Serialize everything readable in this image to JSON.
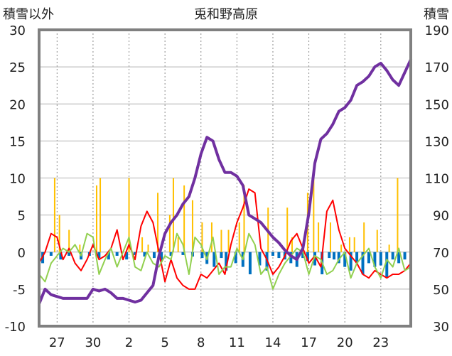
{
  "chart_data": {
    "type": "line",
    "title": "兎和野高原",
    "ylabel_left": "積雪以外",
    "ylabel_right": "積雪",
    "y_left": {
      "min": -10,
      "max": 30,
      "ticks": [
        -10,
        -5,
        0,
        5,
        10,
        15,
        20,
        25,
        30
      ]
    },
    "y_right": {
      "min": 30,
      "max": 190,
      "ticks": [
        30,
        50,
        70,
        90,
        110,
        130,
        150,
        170,
        190
      ]
    },
    "x": {
      "min": 0,
      "max": 31,
      "tick_positions": [
        1.5,
        4.5,
        7.5,
        10.5,
        13.5,
        16.5,
        19.5,
        22.5,
        25.5,
        28.5
      ],
      "tick_labels": [
        "27",
        "30",
        "2",
        "5",
        "8",
        "11",
        "14",
        "17",
        "20",
        "23"
      ]
    },
    "grid": "vertical-dotted",
    "colors": {
      "frame": "#808080",
      "grid": "#8a8a8a",
      "temp": "#ff0000",
      "dewpoint": "#92d050",
      "snow": "#7030a0",
      "precip": "#ffc000",
      "bars": "#0070c0"
    },
    "series": [
      {
        "key": "temp",
        "axis": "left",
        "x": [
          0,
          0.5,
          1,
          1.5,
          2,
          2.5,
          3,
          3.5,
          4,
          4.5,
          5,
          5.5,
          6,
          6.5,
          7,
          7.5,
          8,
          8.5,
          9,
          9.5,
          10,
          10.5,
          11,
          11.5,
          12,
          12.5,
          13,
          13.5,
          14,
          14.5,
          15,
          15.5,
          16,
          16.5,
          17,
          17.5,
          18,
          18.5,
          19,
          19.5,
          20,
          20.5,
          21,
          21.5,
          22,
          22.5,
          23,
          23.5,
          24,
          24.5,
          25,
          25.5,
          26,
          26.5,
          27,
          27.5,
          28,
          28.5,
          29,
          29.5,
          30,
          30.5,
          31
        ],
        "values": [
          -1.5,
          0,
          2.5,
          2,
          -1,
          0.5,
          -1.5,
          -2.5,
          -1,
          1,
          -1,
          -0.5,
          0.5,
          3,
          -1,
          1,
          -1,
          3.5,
          5.5,
          4,
          0,
          -4,
          -1,
          -3.5,
          -4.5,
          -5,
          -5,
          -3,
          -3.5,
          -2.5,
          -1.5,
          -3,
          1,
          4,
          6,
          8.5,
          8,
          0.5,
          -1,
          -3,
          -2,
          -0.5,
          1.5,
          2.5,
          0.5,
          -1.5,
          -0.5,
          -2,
          5.5,
          7,
          3,
          0.5,
          -0.5,
          -1.5,
          -3,
          -3.5,
          -2.5,
          -3,
          -3.5,
          -3,
          -3,
          -2.5,
          -1.5
        ]
      },
      {
        "key": "dewpoint",
        "axis": "left",
        "x": [
          0,
          0.5,
          1,
          1.5,
          2,
          2.5,
          3,
          3.5,
          4,
          4.5,
          5,
          5.5,
          6,
          6.5,
          7,
          7.5,
          8,
          8.5,
          9,
          9.5,
          10,
          10.5,
          11,
          11.5,
          12,
          12.5,
          13,
          13.5,
          14,
          14.5,
          15,
          15.5,
          16,
          16.5,
          17,
          17.5,
          18,
          18.5,
          19,
          19.5,
          20,
          20.5,
          21,
          21.5,
          22,
          22.5,
          23,
          23.5,
          24,
          24.5,
          25,
          25.5,
          26,
          26.5,
          27,
          27.5,
          28,
          28.5,
          29,
          29.5,
          30,
          30.5,
          31
        ],
        "values": [
          -3,
          -4,
          -1.5,
          -0.5,
          0.5,
          0,
          1,
          -0.5,
          2.5,
          2,
          -3,
          -1,
          0.5,
          -2,
          0,
          2,
          -2,
          -2.5,
          0,
          -1.5,
          -2,
          -0.5,
          -1,
          2.5,
          1,
          -3,
          2,
          1,
          -1,
          2,
          -3,
          -2,
          -2,
          0.5,
          -1,
          2.5,
          1,
          -3,
          -2,
          -5,
          -3,
          -1.5,
          -0.5,
          0.5,
          0,
          -3,
          -0.5,
          -1,
          -3,
          -2.5,
          -1,
          0,
          -3.5,
          -1.5,
          -0.5,
          0.5,
          -2,
          -3.5,
          -1,
          -2,
          0.5,
          -2.5,
          -2
        ]
      },
      {
        "key": "snow",
        "axis": "right",
        "x": [
          0,
          0.5,
          1,
          1.5,
          2,
          2.5,
          3,
          3.5,
          4,
          4.5,
          5,
          5.5,
          6,
          6.5,
          7,
          7.5,
          8,
          8.5,
          9,
          9.5,
          10,
          10.5,
          11,
          11.5,
          12,
          12.5,
          13,
          13.5,
          14,
          14.5,
          15,
          15.5,
          16,
          16.5,
          17,
          17.5,
          18,
          18.5,
          19,
          19.5,
          20,
          20.5,
          21,
          21.5,
          22,
          22.5,
          23,
          23.5,
          24,
          24.5,
          25,
          25.5,
          26,
          26.5,
          27,
          27.5,
          28,
          28.5,
          29,
          29.5,
          30,
          30.5,
          31
        ],
        "values": [
          42,
          50,
          47,
          46,
          45,
          45,
          45,
          45,
          45,
          50,
          49,
          50,
          48,
          45,
          45,
          44,
          43,
          44,
          48,
          52,
          68,
          80,
          86,
          90,
          96,
          100,
          110,
          123,
          132,
          130,
          120,
          113,
          113,
          111,
          106,
          90,
          88,
          86,
          82,
          78,
          75,
          71,
          68,
          66,
          72,
          91,
          118,
          131,
          134,
          139,
          146,
          148,
          152,
          160,
          162,
          165,
          170,
          172,
          168,
          163,
          160,
          167,
          174
        ]
      },
      {
        "key": "precip",
        "axis": "left",
        "type": "bar",
        "x": [
          1.3,
          1.7,
          2.5,
          3.4,
          4.8,
          5.1,
          7.5,
          8.6,
          9.1,
          9.9,
          10.9,
          11.2,
          11.6,
          12.1,
          12.8,
          13.6,
          14.4,
          15.2,
          15.8,
          16.7,
          17.1,
          19.1,
          20.7,
          21.1,
          22.4,
          22.9,
          23.3,
          24.3,
          25.2,
          25.9,
          26.3,
          27.1,
          28.2,
          29.2,
          29.9
        ],
        "values": [
          10,
          5,
          3,
          1,
          9,
          10,
          10,
          2,
          1,
          8,
          5,
          10,
          2,
          9,
          7,
          4,
          4,
          3,
          3,
          4,
          9,
          6,
          6,
          2,
          8,
          10,
          4,
          4,
          1,
          2,
          2,
          4,
          3,
          1,
          10
        ]
      },
      {
        "key": "bars",
        "axis": "left",
        "type": "bar",
        "x": [
          0.3,
          1,
          1.8,
          2.5,
          3.5,
          4.2,
          5,
          5.8,
          6.5,
          7.3,
          8,
          8.8,
          9.6,
          10.2,
          11,
          12,
          12.8,
          13.6,
          14,
          14.6,
          15.2,
          15.6,
          16.4,
          17,
          17.6,
          18.4,
          19,
          19.5,
          20,
          20.5,
          21,
          21.5,
          22,
          22.4,
          23,
          23.6,
          24.2,
          24.6,
          25,
          25.5,
          26,
          26.5,
          27,
          27.5,
          28,
          28.5,
          29,
          29.5,
          30,
          30.5,
          31
        ],
        "values": [
          -1.5,
          -0.5,
          -1,
          -0.5,
          -1,
          -0.5,
          -0.8,
          -1,
          -0.5,
          -1,
          -0.4,
          -0.6,
          -0.8,
          -1.2,
          -0.5,
          -0.4,
          -0.6,
          -0.8,
          -1.6,
          -2,
          -0.8,
          -2.5,
          -1.5,
          -2,
          -3,
          -1.8,
          -2.5,
          -0.5,
          -0.8,
          -1,
          -1.5,
          -2,
          -0.8,
          -1.2,
          -1.8,
          -3,
          -0.8,
          -1,
          -1.5,
          -2,
          -2.5,
          -1.5,
          -3,
          -1.5,
          -2,
          -1.8,
          -3.5,
          -1,
          -1.5,
          -1,
          -0.5
        ]
      }
    ]
  }
}
